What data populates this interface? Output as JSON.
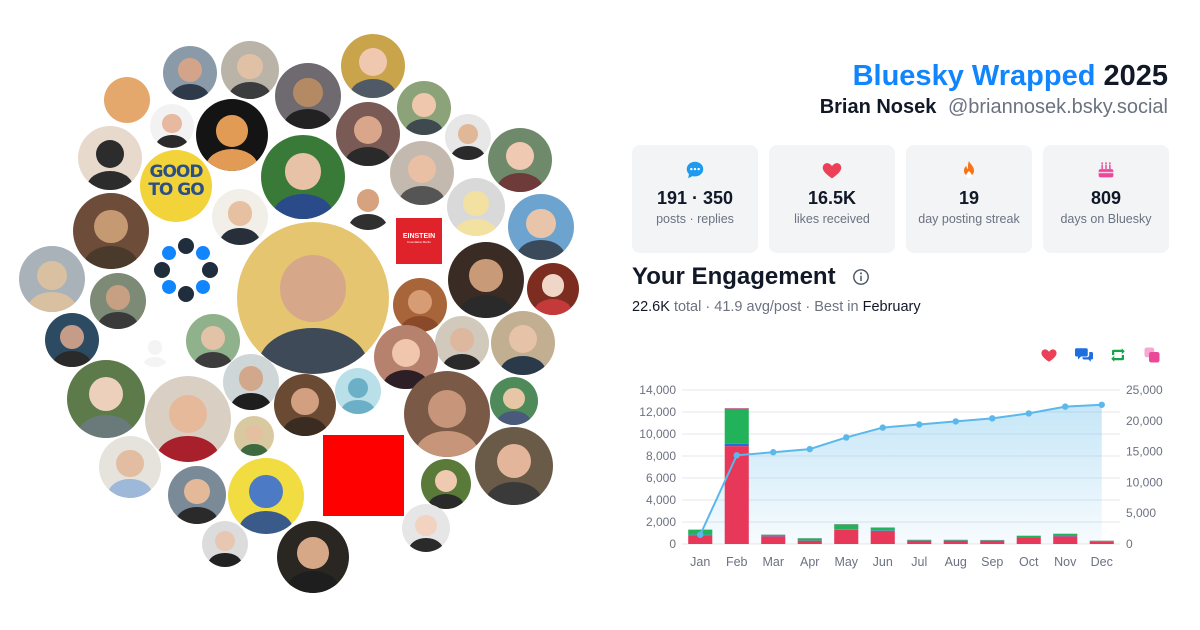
{
  "header": {
    "brand": "Bluesky Wrapped",
    "year": "2025",
    "display_name": "Brian Nosek",
    "handle": "@briannosek.bsky.social"
  },
  "stats": [
    {
      "icon": "chat-bubble-icon",
      "value": "191 · 350",
      "label": "posts · replies",
      "color": "#1d9bf0"
    },
    {
      "icon": "heart-icon",
      "value": "16.5K",
      "label": "likes received",
      "color": "#ec4058"
    },
    {
      "icon": "flame-icon",
      "value": "19",
      "label": "day posting streak",
      "color": "#f97316"
    },
    {
      "icon": "birthday-cake-icon",
      "value": "809",
      "label": "days on Bluesky",
      "color": "#ec4899"
    }
  ],
  "engagement": {
    "title": "Your Engagement",
    "total": "22.6K",
    "total_word": "total",
    "avg": "41.9 avg/post",
    "best_prefix": "Best in",
    "best_month": "February",
    "toggles": [
      {
        "icon": "heart-icon",
        "color": "#ec4058"
      },
      {
        "icon": "reply-bubbles-icon",
        "color": "#1d6fe0"
      },
      {
        "icon": "repost-icon",
        "color": "#16a34a"
      },
      {
        "icon": "quote-squares-icon",
        "color": "#ec4899"
      }
    ]
  },
  "avatar_logo": {
    "line1": "EINSTEIN",
    "line2": "Foundation Berlin"
  },
  "avatar_book": [
    "GOOD",
    "TO GO"
  ],
  "chart_data": {
    "type": "bar",
    "categories": [
      "Jan",
      "Feb",
      "Mar",
      "Apr",
      "May",
      "Jun",
      "Jul",
      "Aug",
      "Sep",
      "Oct",
      "Nov",
      "Dec"
    ],
    "stacked": true,
    "series": [
      {
        "color": "#e8385a",
        "values": [
          800,
          8900,
          700,
          300,
          1300,
          1200,
          300,
          300,
          300,
          600,
          700,
          250
        ]
      },
      {
        "color": "#1d6fe0",
        "values": [
          50,
          200,
          30,
          20,
          40,
          40,
          20,
          20,
          20,
          30,
          30,
          10
        ]
      },
      {
        "color": "#22b35a",
        "values": [
          450,
          3200,
          120,
          200,
          450,
          250,
          60,
          60,
          40,
          120,
          200,
          40
        ]
      },
      {
        "color": "#ec4899",
        "values": [
          20,
          60,
          10,
          10,
          20,
          20,
          10,
          10,
          10,
          10,
          10,
          10
        ]
      }
    ],
    "cumulative": {
      "color": "#5bb8ea",
      "values": [
        1500,
        14400,
        14900,
        15400,
        17300,
        18900,
        19400,
        19900,
        20400,
        21200,
        22300,
        22600
      ]
    },
    "ylim_left": [
      0,
      14000
    ],
    "yticks_left": [
      "0",
      "2,000",
      "4,000",
      "6,000",
      "8,000",
      "10,000",
      "12,000",
      "14,000"
    ],
    "ylim_right": [
      0,
      25000
    ],
    "yticks_right": [
      "0",
      "5,000",
      "10,000",
      "15,000",
      "20,000",
      "25,000"
    ],
    "grid": true
  }
}
